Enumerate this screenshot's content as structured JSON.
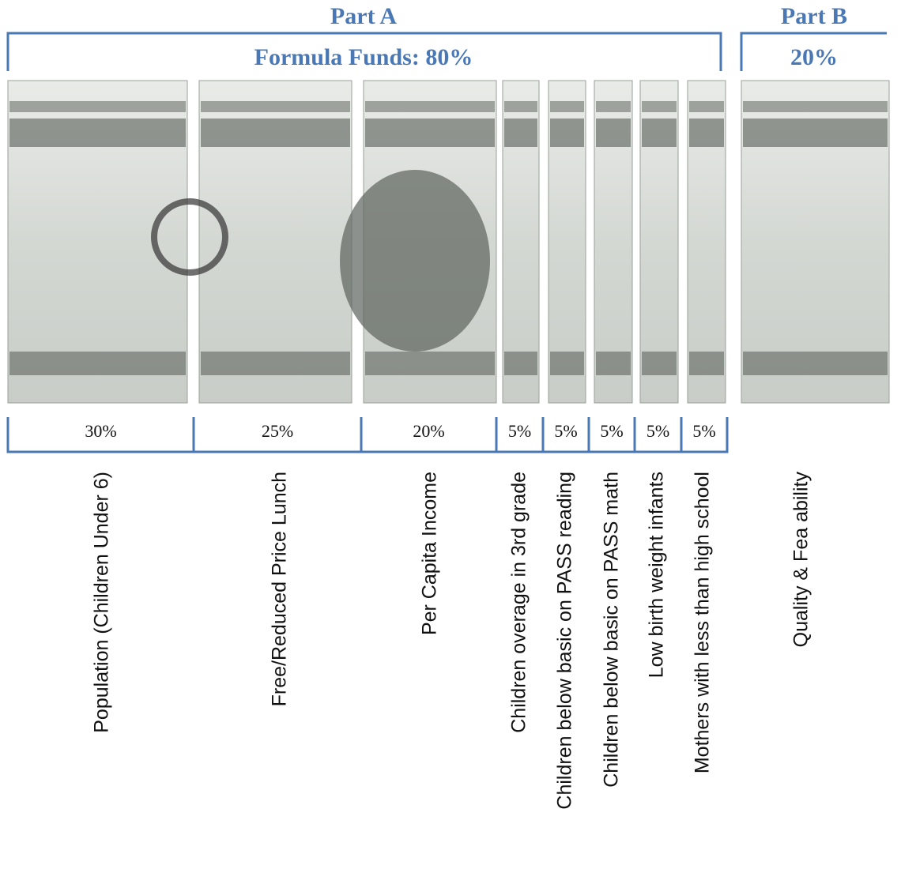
{
  "header": {
    "part_a": "Part A",
    "part_a_subtitle": "Formula Funds:  80%",
    "part_b": "Part B",
    "part_b_subtitle": "20%"
  },
  "segments": [
    {
      "percent": "30%",
      "label": "Population (Children Under 6)"
    },
    {
      "percent": "25%",
      "label": "Free/Reduced Price Lunch"
    },
    {
      "percent": "20%",
      "label": "Per Capita Income"
    },
    {
      "percent": "5%",
      "label": "Children overage in 3rd grade"
    },
    {
      "percent": "5%",
      "label": "Children below basic on PASS  reading"
    },
    {
      "percent": "5%",
      "label": "Children below basic on PASS  math"
    },
    {
      "percent": "5%",
      "label": "Low birth weight infants"
    },
    {
      "percent": "5%",
      "label": "Mothers with less than high school"
    }
  ],
  "part_b_label": "Quality & Fea ability"
}
